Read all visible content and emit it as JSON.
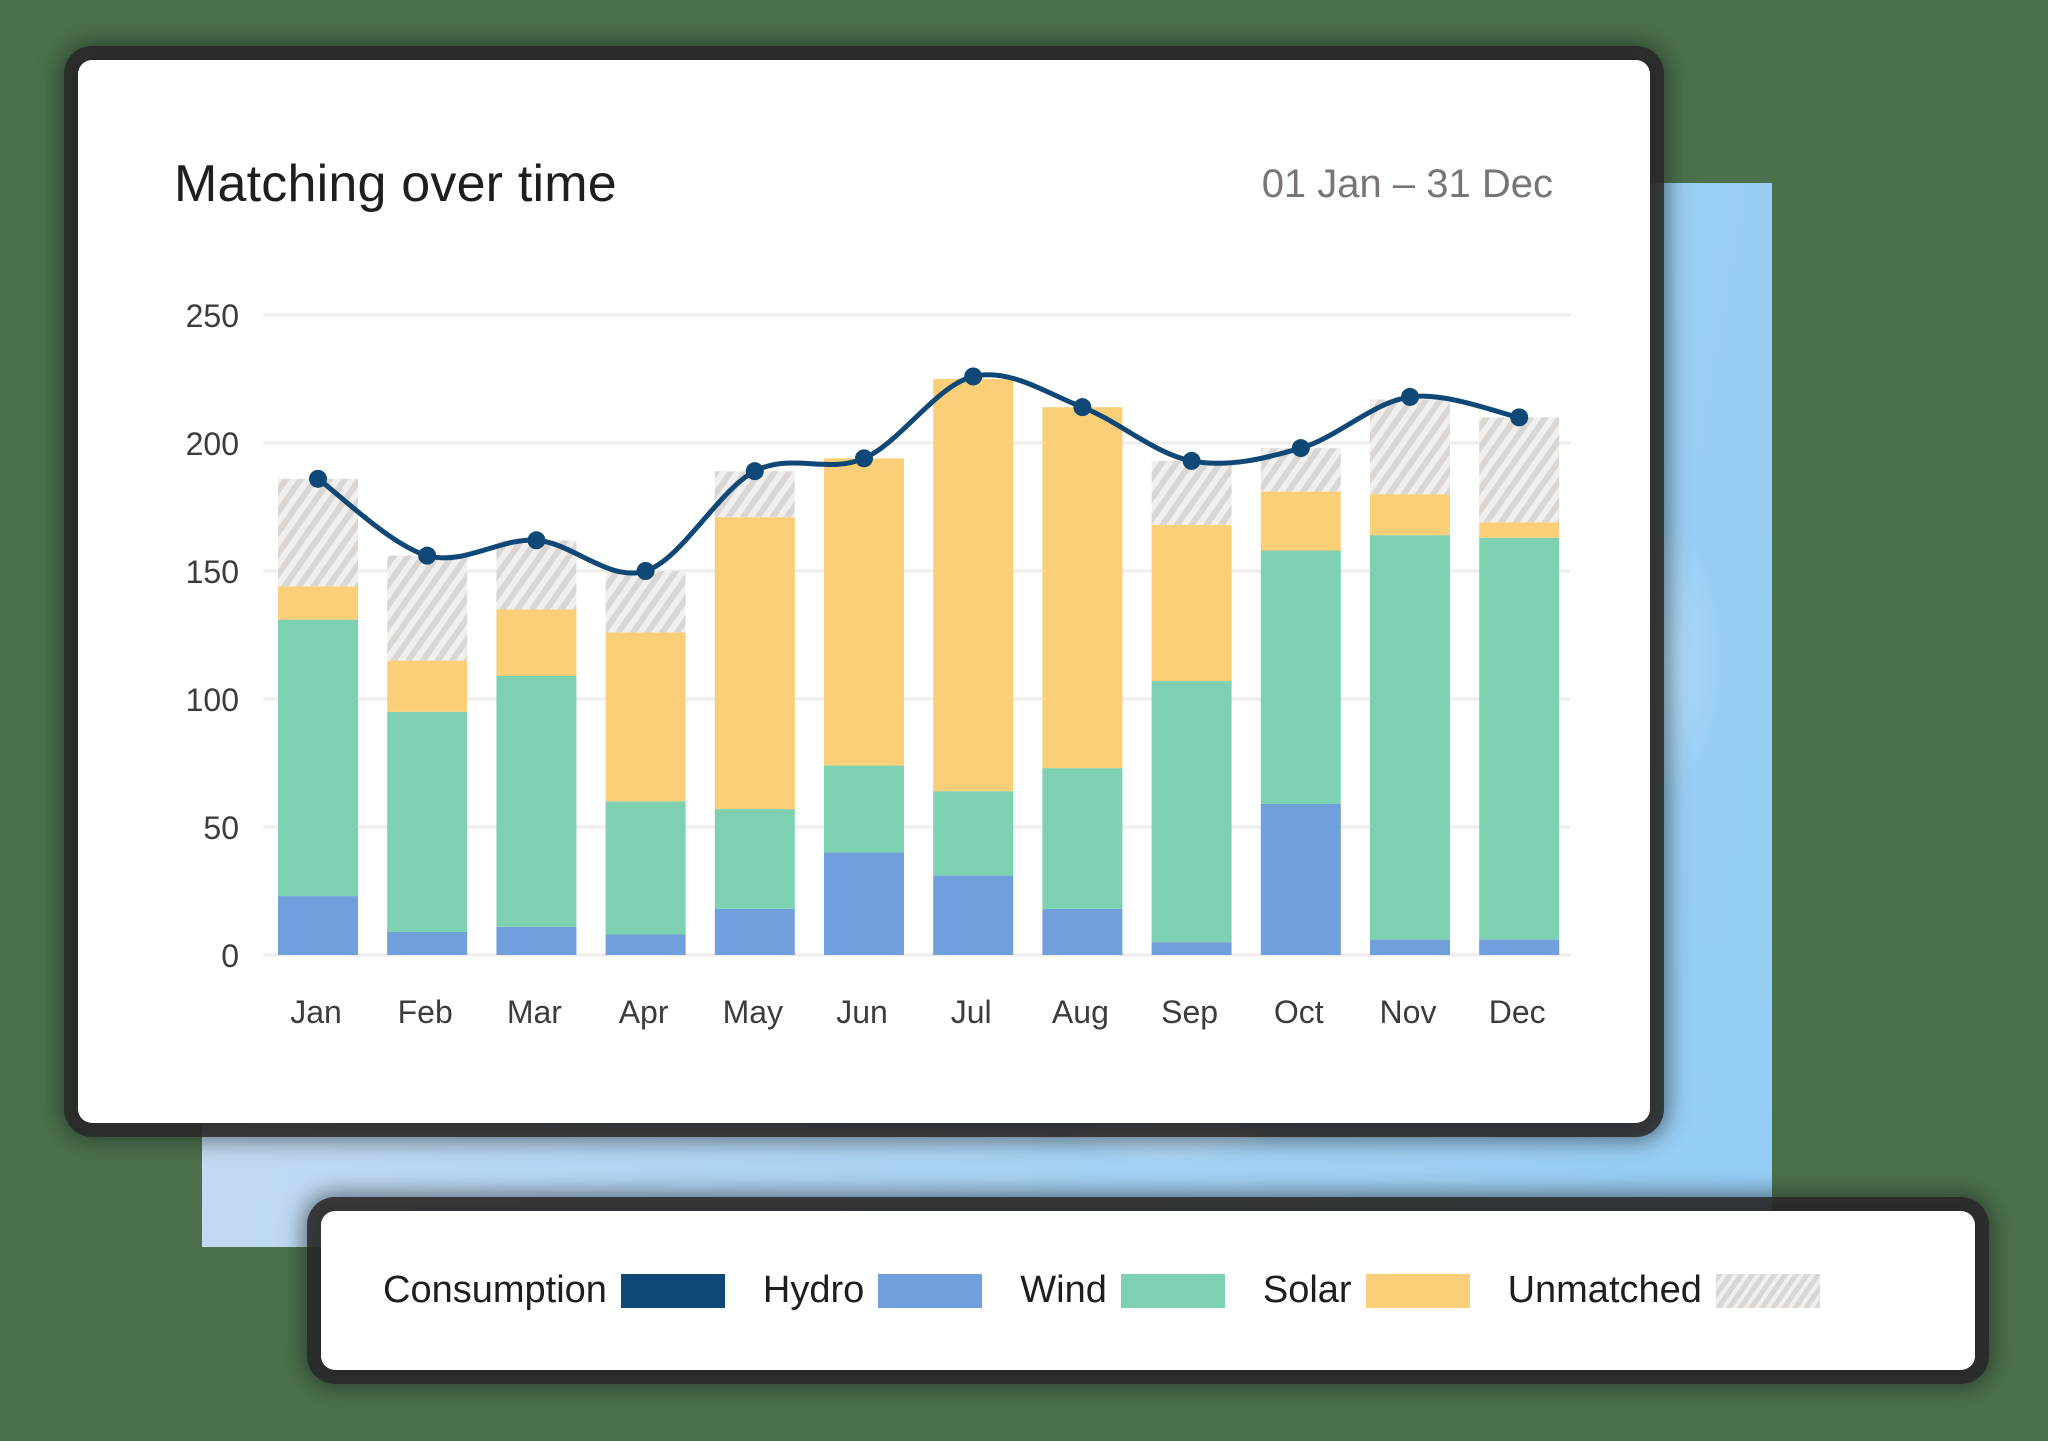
{
  "card": {
    "title": "Matching over time",
    "date_range": "01 Jan – 31 Dec"
  },
  "colors": {
    "consumption": "#0f4876",
    "hydro": "#6fa0dc",
    "wind": "#7dd0b0",
    "solar": "#fbcf78",
    "unmatched": "#d9d6d3",
    "gridline": "#efeceb",
    "axis_text": "#3c3c3c"
  },
  "legend": [
    {
      "label": "Consumption",
      "key": "consumption"
    },
    {
      "label": "Hydro",
      "key": "hydro"
    },
    {
      "label": "Wind",
      "key": "wind"
    },
    {
      "label": "Solar",
      "key": "solar"
    },
    {
      "label": "Unmatched",
      "key": "unmatched"
    }
  ],
  "chart_data": {
    "type": "bar",
    "subtype": "stacked bar with line overlay",
    "title": "Matching over time",
    "subtitle": "01 Jan – 31 Dec",
    "xlabel": "",
    "ylabel": "",
    "ylim": [
      0,
      250
    ],
    "yticks": [
      0,
      50,
      100,
      150,
      200,
      250
    ],
    "grid": true,
    "legend_position": "bottom",
    "categories": [
      "Jan",
      "Feb",
      "Mar",
      "Apr",
      "May",
      "Jun",
      "Jul",
      "Aug",
      "Sep",
      "Oct",
      "Nov",
      "Dec"
    ],
    "series": [
      {
        "name": "Hydro",
        "type": "bar",
        "stack": "supply",
        "values": [
          23,
          9,
          11,
          8,
          18,
          40,
          31,
          18,
          5,
          59,
          6,
          6
        ]
      },
      {
        "name": "Wind",
        "type": "bar",
        "stack": "supply",
        "values": [
          108,
          86,
          98,
          52,
          39,
          34,
          33,
          55,
          102,
          99,
          158,
          157
        ]
      },
      {
        "name": "Solar",
        "type": "bar",
        "stack": "supply",
        "values": [
          13,
          20,
          26,
          66,
          114,
          120,
          161,
          141,
          61,
          23,
          16,
          6
        ]
      },
      {
        "name": "Unmatched",
        "type": "bar",
        "stack": "supply",
        "pattern": "hatched",
        "values": [
          42,
          41,
          27,
          24,
          18,
          0,
          0,
          0,
          25,
          17,
          37,
          41
        ]
      },
      {
        "name": "Consumption",
        "type": "line",
        "smooth": true,
        "markers": true,
        "values": [
          186,
          156,
          162,
          150,
          189,
          194,
          226,
          214,
          193,
          198,
          218,
          210
        ]
      }
    ]
  }
}
